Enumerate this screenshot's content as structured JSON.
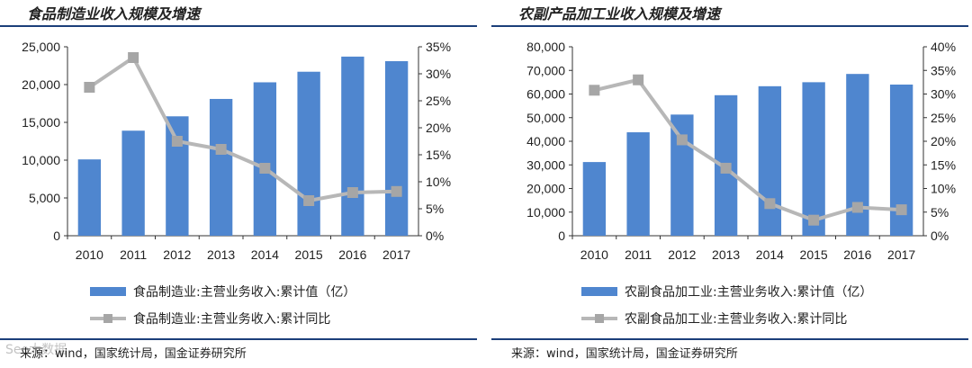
{
  "colors": {
    "bar": "#4f86cf",
    "line": "#b7b7b7",
    "marker": "#a6a6a6",
    "rule": "#1c3f7a"
  },
  "panels": [
    {
      "title": "食品制造业收入规模及增速",
      "legend_bar": "食品制造业:主营业务收入:累计值（亿）",
      "legend_line": "食品制造业:主营业务收入:累计同比",
      "source": "来源：wind，国家统计局，国金证券研究所"
    },
    {
      "title": "农副产品加工业收入规模及增速",
      "legend_bar": "农副食品加工业:主营业务收入:累计值（亿）",
      "legend_line": "农副食品加工业:主营业务收入:累计同比",
      "source": "来源：wind，国家统计局，国金证券研究所"
    }
  ],
  "watermark": "Seo大数据",
  "chart_data": [
    {
      "type": "bar",
      "title": "食品制造业收入规模及增速",
      "categories": [
        "2010",
        "2011",
        "2012",
        "2013",
        "2014",
        "2015",
        "2016",
        "2017"
      ],
      "series": [
        {
          "name": "食品制造业:主营业务收入:累计值（亿）",
          "type": "bar",
          "axis": "left",
          "values": [
            10100,
            13900,
            15800,
            18100,
            20300,
            21700,
            23700,
            23100
          ]
        },
        {
          "name": "食品制造业:主营业务收入:累计同比",
          "type": "line",
          "axis": "right",
          "unit": "%",
          "values": [
            27.5,
            33.0,
            17.5,
            16.0,
            12.5,
            6.5,
            8.0,
            8.2
          ]
        }
      ],
      "y_left": {
        "min": 0,
        "max": 25000,
        "ticks": [
          "0",
          "5,000",
          "10,000",
          "15,000",
          "20,000",
          "25,000"
        ]
      },
      "y_right": {
        "min": 0,
        "max": 35,
        "ticks": [
          "0%",
          "5%",
          "10%",
          "15%",
          "20%",
          "25%",
          "30%",
          "35%"
        ]
      }
    },
    {
      "type": "bar",
      "title": "农副产品加工业收入规模及增速",
      "categories": [
        "2010",
        "2011",
        "2012",
        "2013",
        "2014",
        "2015",
        "2016",
        "2017"
      ],
      "series": [
        {
          "name": "农副食品加工业:主营业务收入:累计值（亿）",
          "type": "bar",
          "axis": "left",
          "values": [
            31200,
            43800,
            51300,
            59500,
            63300,
            65000,
            68500,
            64000
          ]
        },
        {
          "name": "农副食品加工业:主营业务收入:累计同比",
          "type": "line",
          "axis": "right",
          "unit": "%",
          "values": [
            30.8,
            33.0,
            20.3,
            14.3,
            6.8,
            3.3,
            6.0,
            5.5
          ]
        }
      ],
      "y_left": {
        "min": 0,
        "max": 80000,
        "ticks": [
          "0",
          "10,000",
          "20,000",
          "30,000",
          "40,000",
          "50,000",
          "60,000",
          "70,000",
          "80,000"
        ]
      },
      "y_right": {
        "min": 0,
        "max": 40,
        "ticks": [
          "0%",
          "5%",
          "10%",
          "15%",
          "20%",
          "25%",
          "30%",
          "35%",
          "40%"
        ]
      }
    }
  ]
}
